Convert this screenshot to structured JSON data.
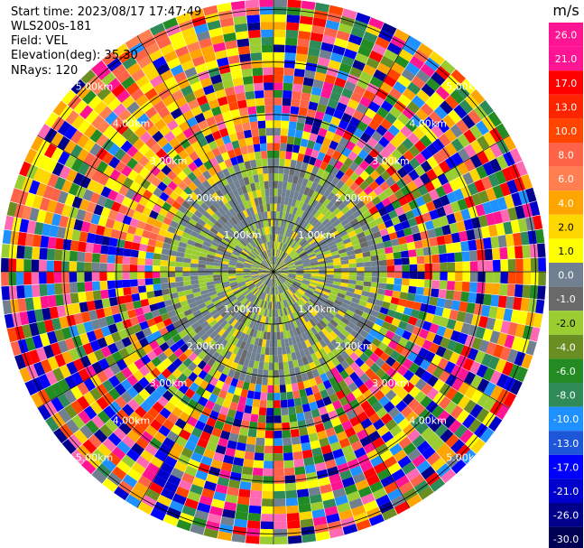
{
  "header": {
    "start_time": "Start time: 2023/08/17 17:47:49",
    "instrument": "WLS200s-181",
    "field": "Field: VEL",
    "elevation": "Elevation(deg): 35.30",
    "nrays": "NRays: 120"
  },
  "colorbar": {
    "unit": "m/s",
    "labels": [
      "26.0",
      "21.0",
      "17.0",
      "13.0",
      "10.0",
      "8.0",
      "6.0",
      "4.0",
      "2.0",
      "1.0",
      "0.0",
      "-1.0",
      "-2.0",
      "-4.0",
      "-6.0",
      "-8.0",
      "-10.0",
      "-13.0",
      "-17.0",
      "-21.0",
      "-26.0",
      "-30.0"
    ],
    "colors": [
      "#ff1493",
      "#ff1493",
      "#ff0000",
      "#ff2400",
      "#ff4500",
      "#ff6347",
      "#ff7f50",
      "#ffa500",
      "#ffd700",
      "#ffff00",
      "#708090",
      "#696969",
      "#9acd32",
      "#6b8e23",
      "#228b22",
      "#2e8b57",
      "#1e90ff",
      "#1e56d9",
      "#0000ff",
      "#0000cd",
      "#00008b",
      "#000055"
    ]
  },
  "chart_data": {
    "type": "heatmap",
    "projection": "polar-ppi",
    "field": "VEL",
    "unit": "m/s",
    "nrays": 120,
    "range_rings_km": [
      1.0,
      2.0,
      3.0,
      4.0,
      5.0
    ],
    "ring_labels": [
      "1.00km",
      "2.00km",
      "3.00km",
      "4.00km",
      "5.00km"
    ],
    "value_bins": [
      26.0,
      21.0,
      17.0,
      13.0,
      10.0,
      8.0,
      6.0,
      4.0,
      2.0,
      1.0,
      0.0,
      -1.0,
      -2.0,
      -4.0,
      -6.0,
      -8.0,
      -10.0,
      -13.0,
      -17.0,
      -21.0,
      -26.0,
      -30.0
    ],
    "description_of_field": "Near range dominated by gray (~0 m/s) and yellow-green (-1 to -2 m/s); outer ranges noisy multicolor with orange/yellow band toward upper-left and west."
  }
}
